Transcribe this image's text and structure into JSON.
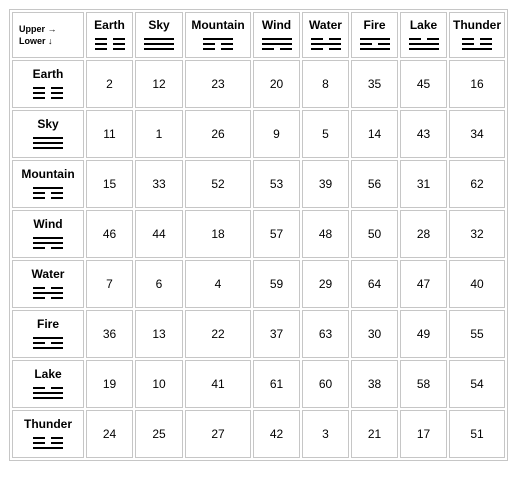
{
  "corner": {
    "line1": "Upper →",
    "line2": "Lower ↓"
  },
  "columns": [
    {
      "label": "Earth",
      "lines": [
        0,
        0,
        0
      ]
    },
    {
      "label": "Sky",
      "lines": [
        1,
        1,
        1
      ]
    },
    {
      "label": "Mountain",
      "lines": [
        1,
        0,
        0
      ]
    },
    {
      "label": "Wind",
      "lines": [
        1,
        1,
        0
      ]
    },
    {
      "label": "Water",
      "lines": [
        0,
        1,
        0
      ]
    },
    {
      "label": "Fire",
      "lines": [
        1,
        0,
        1
      ]
    },
    {
      "label": "Lake",
      "lines": [
        0,
        1,
        1
      ]
    },
    {
      "label": "Thunder",
      "lines": [
        0,
        0,
        1
      ]
    }
  ],
  "rows": [
    {
      "label": "Earth",
      "lines": [
        0,
        0,
        0
      ],
      "values": [
        "2",
        "12",
        "23",
        "20",
        "8",
        "35",
        "45",
        "16"
      ]
    },
    {
      "label": "Sky",
      "lines": [
        1,
        1,
        1
      ],
      "values": [
        "11",
        "1",
        "26",
        "9",
        "5",
        "14",
        "43",
        "34"
      ]
    },
    {
      "label": "Mountain",
      "lines": [
        1,
        0,
        0
      ],
      "values": [
        "15",
        "33",
        "52",
        "53",
        "39",
        "56",
        "31",
        "62"
      ]
    },
    {
      "label": "Wind",
      "lines": [
        1,
        1,
        0
      ],
      "values": [
        "46",
        "44",
        "18",
        "57",
        "48",
        "50",
        "28",
        "32"
      ]
    },
    {
      "label": "Water",
      "lines": [
        0,
        1,
        0
      ],
      "values": [
        "7",
        "6",
        "4",
        "59",
        "29",
        "64",
        "47",
        "40"
      ]
    },
    {
      "label": "Fire",
      "lines": [
        1,
        0,
        1
      ],
      "values": [
        "36",
        "13",
        "22",
        "37",
        "63",
        "30",
        "49",
        "55"
      ],
      "bold_index": 2
    },
    {
      "label": "Lake",
      "lines": [
        0,
        1,
        1
      ],
      "values": [
        "19",
        "10",
        "41",
        "61",
        "60",
        "38",
        "58",
        "54"
      ]
    },
    {
      "label": "Thunder",
      "lines": [
        0,
        0,
        1
      ],
      "values": [
        "24",
        "25",
        "27",
        "42",
        "3",
        "21",
        "17",
        "51"
      ]
    }
  ]
}
